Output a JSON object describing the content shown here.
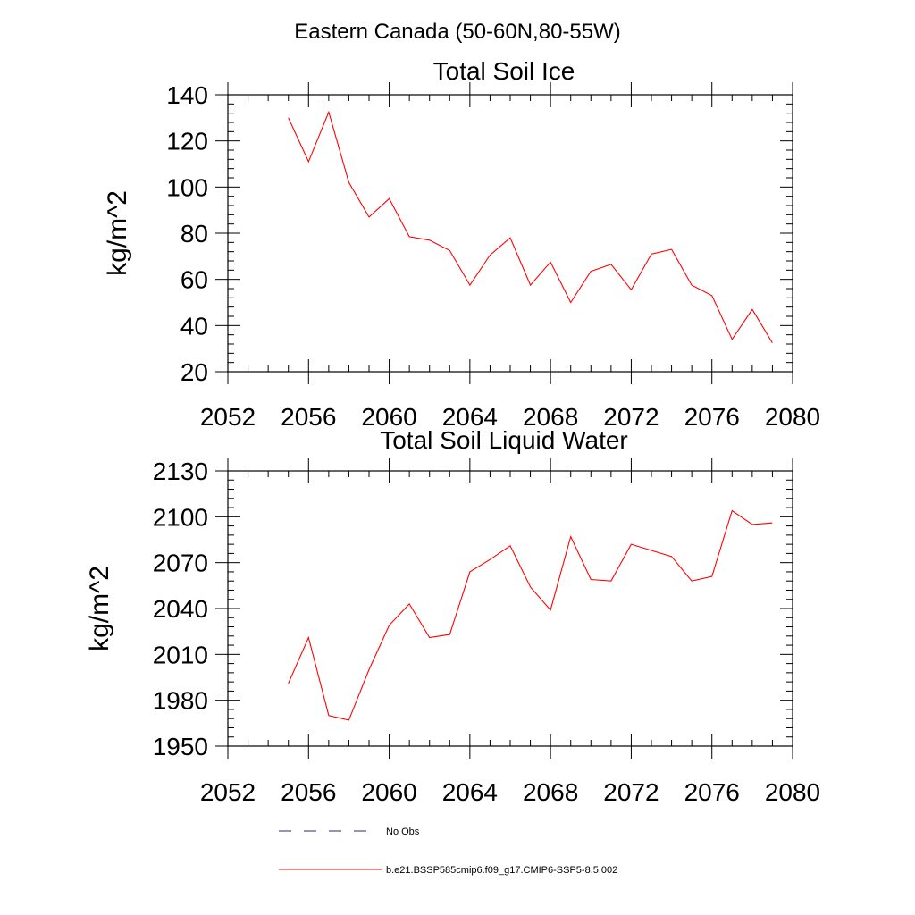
{
  "figure": {
    "title": "Eastern Canada (50-60N,80-55W)"
  },
  "legend": {
    "entries": [
      {
        "label": "No Obs",
        "style": "dashed",
        "color": "#2b2b6e"
      },
      {
        "label": "b.e21.BSSP585cmip6.f09_g17.CMIP6-SSP5-8.5.002",
        "style": "solid",
        "color": "#ff0000"
      }
    ]
  },
  "chart_data": [
    {
      "type": "line",
      "title": "Total Soil Ice",
      "ylabel": "kg/m^2",
      "xlabel": "",
      "xlim": [
        2052,
        2080
      ],
      "ylim": [
        20,
        140
      ],
      "xticks": [
        2052,
        2056,
        2060,
        2064,
        2068,
        2072,
        2076,
        2080
      ],
      "yticks": [
        20,
        40,
        60,
        80,
        100,
        120,
        140
      ],
      "grid": false,
      "series": [
        {
          "color": "#ff0000",
          "x": [
            2055,
            2056,
            2057,
            2058,
            2059,
            2060,
            2061,
            2062,
            2063,
            2064,
            2065,
            2066,
            2067,
            2068,
            2069,
            2070,
            2071,
            2072,
            2073,
            2074,
            2075,
            2076,
            2077,
            2078,
            2079
          ],
          "y": [
            130,
            111,
            132.5,
            102,
            87,
            95,
            78.5,
            77,
            72.5,
            57.5,
            70.5,
            78,
            57.5,
            67.5,
            50,
            63.5,
            66.5,
            55.5,
            71,
            73,
            57.5,
            53,
            34,
            47,
            32.5
          ]
        }
      ]
    },
    {
      "type": "line",
      "title": "Total Soil Liquid Water",
      "ylabel": "kg/m^2",
      "xlabel": "",
      "xlim": [
        2052,
        2080
      ],
      "ylim": [
        1950,
        2130
      ],
      "xticks": [
        2052,
        2056,
        2060,
        2064,
        2068,
        2072,
        2076,
        2080
      ],
      "yticks": [
        1950,
        1980,
        2010,
        2040,
        2070,
        2100,
        2130
      ],
      "grid": false,
      "series": [
        {
          "color": "#ff0000",
          "x": [
            2055,
            2056,
            2057,
            2058,
            2059,
            2060,
            2061,
            2062,
            2063,
            2064,
            2065,
            2066,
            2067,
            2068,
            2069,
            2070,
            2071,
            2072,
            2073,
            2074,
            2075,
            2076,
            2077,
            2078,
            2079
          ],
          "y": [
            1991,
            2021,
            1970,
            1967,
            2000,
            2029,
            2043,
            2021,
            2023,
            2064,
            2072,
            2081,
            2054,
            2039,
            2087,
            2059,
            2058,
            2082,
            2078,
            2074,
            2058,
            2061,
            2104,
            2095,
            2096
          ]
        }
      ]
    }
  ]
}
